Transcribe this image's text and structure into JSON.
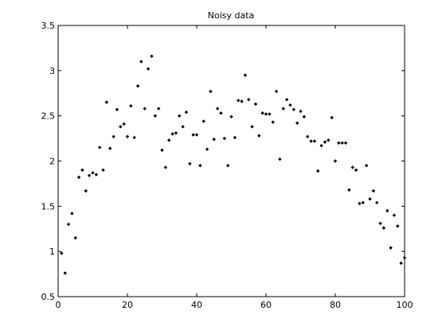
{
  "chart_data": {
    "type": "scatter",
    "title": "Noisy data",
    "xlabel": "",
    "ylabel": "",
    "xlim": [
      0,
      100
    ],
    "ylim": [
      0.5,
      3.5
    ],
    "x_ticks": [
      "0",
      "20",
      "40",
      "60",
      "80",
      "100"
    ],
    "y_ticks": [
      "0.5",
      "1",
      "1.5",
      "2",
      "2.5",
      "3",
      "3.5"
    ],
    "grid": false,
    "legend": "none",
    "marker_color": "#000000",
    "series": [
      {
        "points": [
          [
            1,
            0.98
          ],
          [
            2,
            0.76
          ],
          [
            3,
            1.3
          ],
          [
            4,
            1.42
          ],
          [
            5,
            1.15
          ],
          [
            6,
            1.82
          ],
          [
            7,
            1.9
          ],
          [
            8,
            1.67
          ],
          [
            9,
            1.84
          ],
          [
            10,
            1.87
          ],
          [
            11,
            1.85
          ],
          [
            12,
            2.15
          ],
          [
            13,
            1.9
          ],
          [
            14,
            2.65
          ],
          [
            15,
            2.14
          ],
          [
            16,
            2.27
          ],
          [
            17,
            2.57
          ],
          [
            18,
            2.38
          ],
          [
            19,
            2.41
          ],
          [
            20,
            2.27
          ],
          [
            21,
            2.61
          ],
          [
            22,
            2.26
          ],
          [
            23,
            2.83
          ],
          [
            24,
            3.1
          ],
          [
            25,
            2.58
          ],
          [
            26,
            3.02
          ],
          [
            27,
            3.16
          ],
          [
            28,
            2.5
          ],
          [
            29,
            2.58
          ],
          [
            30,
            2.12
          ],
          [
            31,
            1.93
          ],
          [
            32,
            2.23
          ],
          [
            33,
            2.3
          ],
          [
            34,
            2.31
          ],
          [
            35,
            2.5
          ],
          [
            36,
            2.38
          ],
          [
            37,
            2.54
          ],
          [
            38,
            1.97
          ],
          [
            39,
            2.29
          ],
          [
            40,
            2.29
          ],
          [
            41,
            1.95
          ],
          [
            42,
            2.44
          ],
          [
            43,
            2.13
          ],
          [
            44,
            2.77
          ],
          [
            45,
            2.24
          ],
          [
            46,
            2.58
          ],
          [
            47,
            2.53
          ],
          [
            48,
            2.25
          ],
          [
            49,
            1.95
          ],
          [
            50,
            2.49
          ],
          [
            51,
            2.26
          ],
          [
            52,
            2.67
          ],
          [
            53,
            2.66
          ],
          [
            54,
            2.95
          ],
          [
            55,
            2.68
          ],
          [
            56,
            2.38
          ],
          [
            57,
            2.63
          ],
          [
            58,
            2.28
          ],
          [
            59,
            2.53
          ],
          [
            60,
            2.52
          ],
          [
            61,
            2.52
          ],
          [
            62,
            2.43
          ],
          [
            63,
            2.77
          ],
          [
            64,
            2.02
          ],
          [
            65,
            2.58
          ],
          [
            66,
            2.68
          ],
          [
            67,
            2.62
          ],
          [
            68,
            2.57
          ],
          [
            69,
            2.42
          ],
          [
            70,
            2.55
          ],
          [
            71,
            2.49
          ],
          [
            72,
            2.27
          ],
          [
            73,
            2.22
          ],
          [
            74,
            2.22
          ],
          [
            75,
            1.89
          ],
          [
            76,
            2.17
          ],
          [
            77,
            2.21
          ],
          [
            78,
            2.23
          ],
          [
            79,
            2.48
          ],
          [
            80,
            2.0
          ],
          [
            81,
            2.2
          ],
          [
            82,
            2.2
          ],
          [
            83,
            2.2
          ],
          [
            84,
            1.68
          ],
          [
            85,
            1.93
          ],
          [
            86,
            1.9
          ],
          [
            87,
            1.53
          ],
          [
            88,
            1.54
          ],
          [
            89,
            1.95
          ],
          [
            90,
            1.58
          ],
          [
            91,
            1.67
          ],
          [
            92,
            1.54
          ],
          [
            93,
            1.31
          ],
          [
            94,
            1.26
          ],
          [
            95,
            1.45
          ],
          [
            96,
            1.04
          ],
          [
            97,
            1.4
          ],
          [
            98,
            1.28
          ],
          [
            99,
            0.87
          ],
          [
            100,
            0.93
          ]
        ]
      }
    ]
  }
}
